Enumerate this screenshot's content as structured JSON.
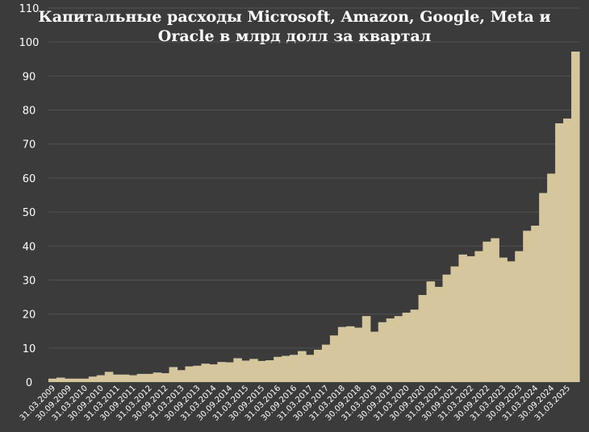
{
  "chart_data": {
    "type": "area",
    "title_lines": [
      "Капитальные расходы Microsoft, Amazon, Google, Meta и",
      "Oracle в млрд долл за квартал"
    ],
    "xlabel": "",
    "ylabel": "",
    "ylim": [
      0,
      110
    ],
    "yticks": [
      0,
      10,
      20,
      30,
      40,
      50,
      60,
      70,
      80,
      90,
      100,
      110
    ],
    "grid": true,
    "step": true,
    "fill_color": "#d6c69e",
    "background_color": "#3b3b3b",
    "x": [
      "31.03.2009",
      "30.06.2009",
      "30.09.2009",
      "31.12.2009",
      "31.03.2010",
      "30.06.2010",
      "30.09.2010",
      "31.12.2010",
      "31.03.2011",
      "30.06.2011",
      "30.09.2011",
      "31.12.2011",
      "31.03.2012",
      "30.06.2012",
      "30.09.2012",
      "31.12.2012",
      "31.03.2013",
      "30.06.2013",
      "30.09.2013",
      "31.12.2013",
      "31.03.2014",
      "30.06.2014",
      "30.09.2014",
      "31.12.2014",
      "31.03.2015",
      "30.06.2015",
      "30.09.2015",
      "31.12.2015",
      "31.03.2016",
      "30.06.2016",
      "30.09.2016",
      "31.12.2016",
      "31.03.2017",
      "30.06.2017",
      "30.09.2017",
      "31.12.2017",
      "31.03.2018",
      "30.06.2018",
      "30.09.2018",
      "31.12.2018",
      "31.03.2019",
      "30.06.2019",
      "30.09.2019",
      "31.12.2019",
      "31.03.2020",
      "30.06.2020",
      "30.09.2020",
      "31.12.2020",
      "31.03.2021",
      "30.06.2021",
      "30.09.2021",
      "31.12.2021",
      "31.03.2022",
      "30.06.2022",
      "30.09.2022",
      "31.12.2022",
      "31.03.2023",
      "30.06.2023",
      "30.09.2023",
      "31.12.2023",
      "31.03.2024",
      "30.06.2024",
      "30.09.2024",
      "31.12.2024",
      "31.03.2025",
      "30.06.2025"
    ],
    "xtick_labels": [
      "31.03.2009",
      "30.09.2009",
      "31.03.2010",
      "30.09.2010",
      "31.03.2011",
      "30.09.2011",
      "31.03.2012",
      "30.09.2012",
      "31.03.2013",
      "30.09.2013",
      "31.03.2014",
      "30.09.2014",
      "31.03.2015",
      "30.09.2015",
      "31.03.2016",
      "30.09.2016",
      "31.03.2017",
      "30.09.2017",
      "31.03.2018",
      "30.09.2018",
      "31.03.2019",
      "30.09.2019",
      "31.03.2020",
      "30.09.2020",
      "31.03.2021",
      "30.09.2021",
      "31.03.2022",
      "30.09.2022",
      "31.03.2023",
      "30.09.2023",
      "31.03.2024",
      "30.09.2024",
      "31.03.2025"
    ],
    "values": [
      1.0,
      1.3,
      1.0,
      1.0,
      1.0,
      1.6,
      2.0,
      3.0,
      2.2,
      2.2,
      2.0,
      2.4,
      2.4,
      2.8,
      2.6,
      4.4,
      3.5,
      4.6,
      4.8,
      5.4,
      5.2,
      5.9,
      5.8,
      7.0,
      6.3,
      6.8,
      6.2,
      6.4,
      7.4,
      7.7,
      8.0,
      9.1,
      8.0,
      9.5,
      11.0,
      13.7,
      16.2,
      16.4,
      16.0,
      19.4,
      14.8,
      17.6,
      18.7,
      19.4,
      20.4,
      21.3,
      25.6,
      29.6,
      28.0,
      31.6,
      34.0,
      37.5,
      37.0,
      38.5,
      41.3,
      42.3,
      36.6,
      35.5,
      38.5,
      44.5,
      46.0,
      55.6,
      61.3,
      76.1,
      77.5,
      97.2
    ]
  }
}
